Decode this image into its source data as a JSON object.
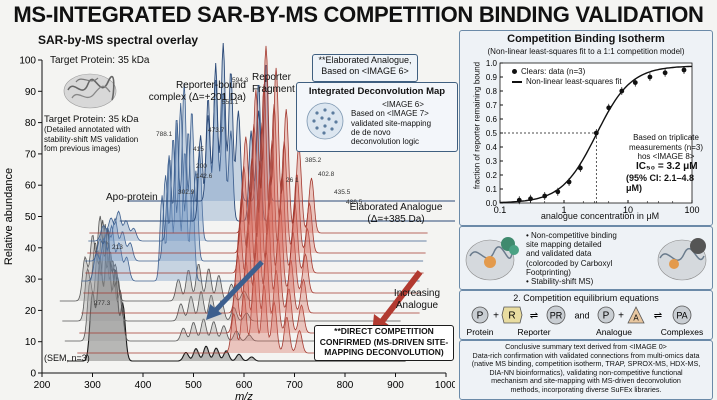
{
  "title": "MS-INTEGRATED SAR-BY-MS COMPETITION BINDING VALIDATION",
  "left_panel": {
    "subtitle": "SAR-by-MS spectral overlay",
    "target_protein": "Target Protein: 35 kDa",
    "target_protein_detail": [
      "Target Protein: 35 kDa",
      "(Detailed annotated with",
      "stability-shift MS validation",
      "fom previous images)"
    ],
    "reporter_bound": [
      "Reporter-bound",
      "complex (Δ=+201 Da)"
    ],
    "reporter_fragment": [
      "Reporter",
      "Fragment"
    ],
    "apo_protein": "Apo-protein",
    "elaborated_analogue": [
      "Elaborated Analogue",
      "(Δ=+385 Da)"
    ],
    "increasing_analogue": [
      "Increasing",
      "Analogue"
    ],
    "sem_note": "(SEM, n=3)",
    "ylabel": "Relative abundance",
    "xlabel": "m/z",
    "peak_labels": {
      "p594": "594.3",
      "p551": "551.1",
      "p473": "473.7",
      "p415": "415",
      "p200": "200",
      "p142": "142.6",
      "p302": "302.9",
      "p788": "788.1",
      "p213": "213",
      "p277": "277.3",
      "p385": "385.2",
      "p402": "402.8",
      "p435": "435.5",
      "p486": "486.5",
      "p261": "26 1"
    }
  },
  "center": {
    "elaborated_box": [
      "**Elaborated Analogue,",
      "Based on <IMAGE 6>"
    ],
    "deconv_title": "Integrated Deconvolution Map",
    "deconv_text": [
      "<IMAGE 6>",
      "Based on <IMAGE 7>",
      "validated site-mapping",
      "de de novo",
      "deconvolution logic"
    ],
    "confirm_box": [
      "**DIRECT COMPETITION",
      "CONFIRMED (MS-DRIVEN SITE-",
      "MAPPING DECONVOLUTION)"
    ]
  },
  "isotherm": {
    "title": "Competition Binding Isotherm",
    "subtitle": "(Non-linear least-squares fit to a 1:1 competition model)",
    "legend": [
      "Clears: data (n=3)",
      "Non-linear least-squares fit"
    ],
    "triplicate": [
      "Based on triplicate",
      "measurements (n=3)",
      "hos <IMAGE 8>"
    ],
    "ic50": "IC₅₀ = 3.2 μM",
    "ci": "(95% CI: 2.1–4.8 μM)",
    "ylabel": "fraction of reporter remaining bound",
    "xlabel": "analogue concentration in μM"
  },
  "chart_data": [
    {
      "type": "line",
      "title": "SAR-by-MS spectral overlay",
      "xlabel": "m/z",
      "ylabel": "Relative abundance",
      "xlim": [
        200,
        1000
      ],
      "ylim": [
        0,
        100
      ],
      "xticks": [
        200,
        300,
        400,
        500,
        600,
        700,
        800,
        900,
        1000
      ],
      "yticks": [
        0,
        10,
        20,
        30,
        40,
        50,
        60,
        70,
        80,
        90,
        100
      ],
      "grid": false,
      "series": [
        {
          "name": "Apo-protein",
          "peaks": [
            [
              277.3,
              35
            ],
            [
              302.9,
              48
            ],
            [
              348,
              62
            ],
            [
              378,
              75
            ]
          ]
        },
        {
          "name": "Reporter-bound complex (Δ=+201 Da)",
          "peaks": [
            [
              415,
              70
            ],
            [
              451,
              78
            ],
            [
              473.7,
              85
            ],
            [
              551.1,
              89
            ],
            [
              594.3,
              96
            ]
          ]
        },
        {
          "name": "Elaborated Analogue (Δ=+385 Da)",
          "peaks": [
            [
              600,
              50
            ],
            [
              640,
              55
            ],
            [
              670,
              60
            ],
            [
              708,
              64
            ],
            [
              735,
              62
            ]
          ]
        }
      ]
    },
    {
      "type": "scatter",
      "title": "Competition Binding Isotherm",
      "xlabel": "analogue concentration in μM",
      "ylabel": "fraction of reporter remaining bound",
      "xscale": "log",
      "xlim": [
        0.1,
        100
      ],
      "ylim": [
        0,
        1.0
      ],
      "xticks": [
        0.1,
        1,
        10,
        100
      ],
      "yticks": [
        0,
        0.1,
        0.2,
        0.3,
        0.4,
        0.5,
        0.6,
        0.7,
        0.8,
        0.9,
        1.0
      ],
      "grid": false,
      "legend": "top-left",
      "series": [
        {
          "name": "Clears: data (n=3)",
          "x": [
            0.2,
            0.3,
            0.5,
            0.8,
            1.2,
            1.8,
            3.2,
            5,
            8,
            13,
            22,
            38,
            75
          ],
          "y": [
            0.02,
            0.03,
            0.05,
            0.08,
            0.15,
            0.25,
            0.5,
            0.68,
            0.8,
            0.86,
            0.9,
            0.93,
            0.95
          ]
        }
      ],
      "ic50": 3.2
    }
  ],
  "right": {
    "mapping_notes": [
      "• Non-competitive binding",
      "site mapping detailed",
      "and validated data",
      "(colorcoded by Carboxyl",
      "Footprinting)",
      "• Stability-shift MS)"
    ],
    "eq_title": "2. Competition equilibrium equations",
    "eq_labels": {
      "P": "P",
      "R": "R",
      "PR": "PR",
      "A": "A",
      "PA": "PA",
      "plus": "+",
      "and": "and"
    },
    "eq_captions": [
      "Protein",
      "Reporter",
      "Analogue",
      "Complexes"
    ],
    "summary": [
      "Conclusive summary text derived from <IMAGE 0>",
      "Data-rich confirmation with validated connections from multi-omics data",
      "(native MS binding, competition isotherm, TRAP, SPROX-MS, HDX-MS,",
      "DIA-NN bioinformatics), validating non-competitive functional",
      "mechanism and site-mapping with MS-driven deconvolution",
      "methods, incorporating diverse SuFEx libraries."
    ]
  },
  "colors": {
    "blue": "#6f95c4",
    "red": "#d86a5d",
    "gray": "#8a8a8a",
    "dark": "#1b1b1b",
    "frame": "#3f5f80"
  }
}
